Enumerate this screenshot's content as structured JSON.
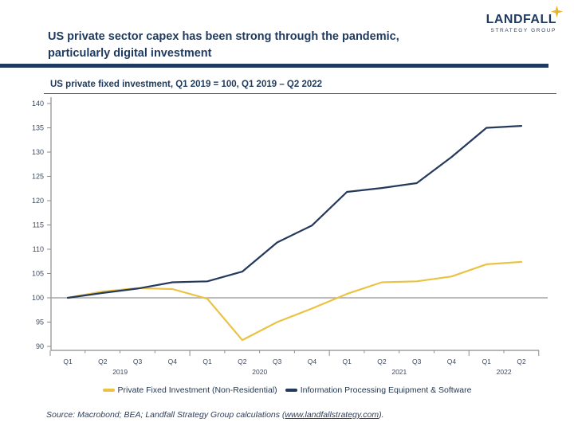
{
  "header": {
    "title_line1": "US private sector capex has been strong through the pandemic,",
    "title_line2": "particularly digital investment",
    "logo": {
      "name": "LANDFALL",
      "tagline": "STRATEGY GROUP",
      "sparkle_icon": "four-point-star",
      "navy": "#1f3a5f",
      "gold": "#e9b429"
    }
  },
  "chart_data": {
    "type": "line",
    "title": "US private fixed investment, Q1 2019 = 100, Q1 2019 – Q2 2022",
    "x_tick_labels": [
      "Q1",
      "Q2",
      "Q3",
      "Q4",
      "Q1",
      "Q2",
      "Q3",
      "Q4",
      "Q1",
      "Q2",
      "Q3",
      "Q4",
      "Q1",
      "Q2"
    ],
    "year_labels": [
      "2019",
      "2020",
      "2021",
      "2022"
    ],
    "y_ticks": [
      90,
      95,
      100,
      105,
      110,
      115,
      120,
      125,
      130,
      135,
      140
    ],
    "ylim": [
      90,
      140
    ],
    "baseline_value": 100,
    "grid": "baseline-only",
    "legend_position": "bottom-center",
    "axis_color": "#8c8c8c",
    "baseline_color": "#a6a6a6",
    "series": [
      {
        "name": "Private Fixed Investment (Non-Residential)",
        "color": "#eac344",
        "values": [
          100,
          101.3,
          102,
          101.8,
          99.8,
          91.3,
          95,
          97.8,
          100.8,
          103.2,
          103.4,
          104.4,
          106.9,
          107.4
        ]
      },
      {
        "name": "Information Processing Equipment & Software",
        "color": "#24395b",
        "values": [
          100,
          101,
          101.9,
          103.2,
          103.4,
          105.4,
          111.4,
          114.9,
          121.8,
          122.6,
          123.6,
          129,
          135,
          135.4
        ]
      }
    ]
  },
  "source": {
    "prefix": "Source: Macrobond; BEA; Landfall Strategy Group calculations (",
    "link": "www.landfallstrategy.com",
    "suffix": ")."
  }
}
